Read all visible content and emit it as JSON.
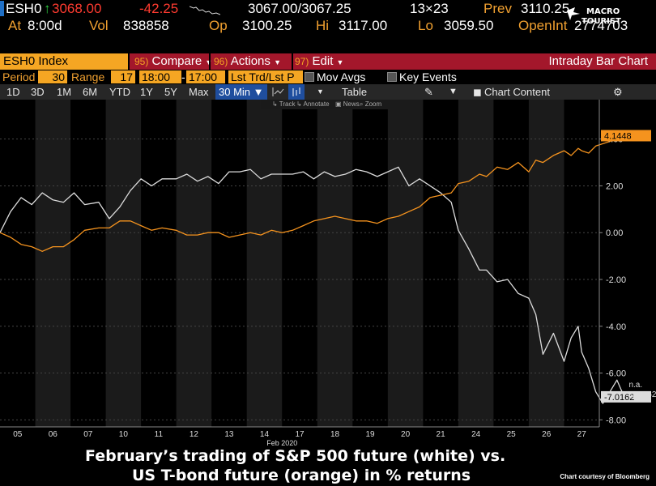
{
  "quote": {
    "ticker": "ESH0",
    "last": "3068.00",
    "change": "-42.25",
    "bid_ask": "3067.00/3067.25",
    "size": "13×23",
    "prev_label": "Prev",
    "prev": "3110.25",
    "at_label": "At",
    "at_time": "8:00d",
    "vol_label": "Vol",
    "vol": "838858",
    "op_label": "Op",
    "op": "3100.25",
    "hi_label": "Hi",
    "hi": "3117.00",
    "lo_label": "Lo",
    "lo": "3059.50",
    "oi_label": "OpenInt",
    "oi": "2774703"
  },
  "logo": {
    "line1": "MACRO",
    "line2": "TOURIST"
  },
  "command": {
    "security": "ESH0 Index",
    "compare_num": "95)",
    "compare": "Compare",
    "actions_num": "96)",
    "actions": "Actions",
    "edit_num": "97)",
    "edit": "Edit",
    "title": "Intraday Bar Chart"
  },
  "settings": {
    "period_label": "Period",
    "period": "30",
    "range_label": "Range",
    "range": "17",
    "time_start": "18:00",
    "time_end": "17:00",
    "lst": "Lst Trd/Lst P",
    "mov_avgs": "Mov Avgs",
    "key_events": "Key Events"
  },
  "toolbar": {
    "buttons": [
      "1D",
      "3D",
      "1M",
      "6M",
      "YTD",
      "1Y",
      "5Y",
      "Max"
    ],
    "interval": "30 Min ▼",
    "table": "Table",
    "chart_content": "Chart Content",
    "sub_track": "Track",
    "sub_annotate": "Annotate",
    "sub_news": "News",
    "sub_zoom": "Zoom"
  },
  "chart_data": {
    "type": "line",
    "x_ticks": [
      "05",
      "06",
      "07",
      "10",
      "11",
      "12",
      "13",
      "14",
      "17",
      "18",
      "19",
      "20",
      "21",
      "24",
      "25",
      "26",
      "27"
    ],
    "x_month_label": "Feb 2020",
    "y_ticks": [
      "4.00",
      "2.00",
      "0.00",
      "-2.00",
      "-4.00",
      "-6.00",
      "-8.00"
    ],
    "ylim": [
      -8.3,
      5.2
    ],
    "series": [
      {
        "color": "#dcdcdc",
        "points": [
          [
            0,
            0.0
          ],
          [
            0.3,
            0.9
          ],
          [
            0.6,
            1.5
          ],
          [
            0.9,
            1.2
          ],
          [
            1.2,
            1.7
          ],
          [
            1.5,
            1.4
          ],
          [
            1.8,
            1.3
          ],
          [
            2.1,
            1.7
          ],
          [
            2.4,
            1.2
          ],
          [
            2.8,
            1.3
          ],
          [
            3.1,
            0.6
          ],
          [
            3.4,
            1.1
          ],
          [
            3.7,
            1.8
          ],
          [
            4.0,
            2.3
          ],
          [
            4.3,
            2.0
          ],
          [
            4.6,
            2.3
          ],
          [
            5.0,
            2.3
          ],
          [
            5.3,
            2.5
          ],
          [
            5.6,
            2.2
          ],
          [
            5.9,
            2.4
          ],
          [
            6.2,
            2.1
          ],
          [
            6.5,
            2.6
          ],
          [
            6.8,
            2.6
          ],
          [
            7.1,
            2.7
          ],
          [
            7.4,
            2.3
          ],
          [
            7.7,
            2.5
          ],
          [
            8.0,
            2.5
          ],
          [
            8.3,
            2.5
          ],
          [
            8.6,
            2.6
          ],
          [
            8.9,
            2.3
          ],
          [
            9.2,
            2.6
          ],
          [
            9.5,
            2.4
          ],
          [
            9.8,
            2.5
          ],
          [
            10.1,
            2.7
          ],
          [
            10.4,
            2.6
          ],
          [
            10.7,
            2.4
          ],
          [
            11.0,
            2.6
          ],
          [
            11.3,
            2.8
          ],
          [
            11.6,
            2.0
          ],
          [
            11.9,
            2.3
          ],
          [
            12.2,
            2.0
          ],
          [
            12.5,
            1.7
          ],
          [
            12.8,
            1.3
          ],
          [
            13.0,
            0.1
          ],
          [
            13.3,
            -0.7
          ],
          [
            13.6,
            -1.6
          ],
          [
            13.8,
            -1.6
          ],
          [
            14.1,
            -2.1
          ],
          [
            14.4,
            -2.0
          ],
          [
            14.7,
            -2.6
          ],
          [
            15.0,
            -2.8
          ],
          [
            15.2,
            -3.5
          ],
          [
            15.4,
            -5.2
          ],
          [
            15.7,
            -4.3
          ],
          [
            16.0,
            -5.5
          ],
          [
            16.2,
            -4.5
          ],
          [
            16.4,
            -4.0
          ],
          [
            16.5,
            -5.1
          ],
          [
            16.7,
            -5.8
          ],
          [
            16.9,
            -6.8
          ],
          [
            17.1,
            -7.3
          ],
          [
            17.3,
            -6.8
          ],
          [
            17.5,
            -6.3
          ],
          [
            17.7,
            -7.0
          ]
        ],
        "end_value": -7.0162,
        "end_label": "-7.0162",
        "last_note": "n.a."
      },
      {
        "color": "#f5931e",
        "points": [
          [
            0,
            0.0
          ],
          [
            0.3,
            -0.2
          ],
          [
            0.6,
            -0.5
          ],
          [
            0.9,
            -0.6
          ],
          [
            1.2,
            -0.8
          ],
          [
            1.5,
            -0.6
          ],
          [
            1.8,
            -0.6
          ],
          [
            2.1,
            -0.3
          ],
          [
            2.4,
            0.1
          ],
          [
            2.8,
            0.2
          ],
          [
            3.1,
            0.2
          ],
          [
            3.4,
            0.5
          ],
          [
            3.7,
            0.5
          ],
          [
            4.0,
            0.3
          ],
          [
            4.3,
            0.1
          ],
          [
            4.6,
            0.2
          ],
          [
            5.0,
            0.1
          ],
          [
            5.3,
            -0.1
          ],
          [
            5.6,
            -0.1
          ],
          [
            5.9,
            0.0
          ],
          [
            6.2,
            0.0
          ],
          [
            6.5,
            -0.2
          ],
          [
            6.8,
            -0.1
          ],
          [
            7.1,
            0.0
          ],
          [
            7.4,
            -0.1
          ],
          [
            7.7,
            0.1
          ],
          [
            8.0,
            0.0
          ],
          [
            8.3,
            0.1
          ],
          [
            8.6,
            0.3
          ],
          [
            8.9,
            0.5
          ],
          [
            9.2,
            0.6
          ],
          [
            9.5,
            0.7
          ],
          [
            9.8,
            0.6
          ],
          [
            10.1,
            0.5
          ],
          [
            10.4,
            0.5
          ],
          [
            10.7,
            0.4
          ],
          [
            11.0,
            0.6
          ],
          [
            11.3,
            0.7
          ],
          [
            11.6,
            0.9
          ],
          [
            11.9,
            1.1
          ],
          [
            12.2,
            1.5
          ],
          [
            12.5,
            1.6
          ],
          [
            12.8,
            1.7
          ],
          [
            13.0,
            2.1
          ],
          [
            13.3,
            2.2
          ],
          [
            13.6,
            2.5
          ],
          [
            13.8,
            2.4
          ],
          [
            14.1,
            2.8
          ],
          [
            14.4,
            2.7
          ],
          [
            14.7,
            3.0
          ],
          [
            15.0,
            2.6
          ],
          [
            15.2,
            3.1
          ],
          [
            15.4,
            3.0
          ],
          [
            15.7,
            3.3
          ],
          [
            16.0,
            3.5
          ],
          [
            16.2,
            3.3
          ],
          [
            16.4,
            3.6
          ],
          [
            16.5,
            3.5
          ],
          [
            16.7,
            3.4
          ],
          [
            16.9,
            3.7
          ],
          [
            17.1,
            3.8
          ],
          [
            17.3,
            3.9
          ],
          [
            17.5,
            4.0
          ],
          [
            17.7,
            4.14
          ]
        ],
        "end_value": 4.1448,
        "end_label": "4.1448"
      }
    ]
  },
  "caption": {
    "line1": "February’s trading of S&P 500 future (white) vs.",
    "line2": "US T-bond future (orange) in % returns",
    "credit": "Chart courtesy of Bloomberg"
  }
}
